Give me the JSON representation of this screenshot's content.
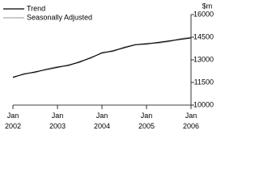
{
  "chart_data": {
    "type": "line",
    "y_label": "$m",
    "categories": [
      "Jan 2002",
      null,
      null,
      null,
      "Jan 2003",
      null,
      null,
      null,
      "Jan 2004",
      null,
      null,
      null,
      "Jan 2005",
      null,
      null,
      null,
      "Jan 2006"
    ],
    "series": [
      {
        "name": "Trend",
        "color": "#000000",
        "values": [
          11850,
          12050,
          12200,
          12350,
          12500,
          12650,
          12850,
          13150,
          13450,
          13600,
          13800,
          14000,
          14050,
          14150,
          14250,
          14350,
          14450
        ]
      },
      {
        "name": "Seasonally Adjusted",
        "color": "#aaaaaa",
        "values": [
          11800,
          12100,
          12150,
          12400,
          12550,
          12600,
          12900,
          13100,
          13500,
          13550,
          13850,
          14000,
          14100,
          14100,
          14200,
          14400,
          14500
        ]
      }
    ],
    "ylim": [
      10000,
      16000
    ],
    "yticks": [
      10000,
      11500,
      13000,
      14500,
      16000
    ],
    "legend": "top-left"
  }
}
